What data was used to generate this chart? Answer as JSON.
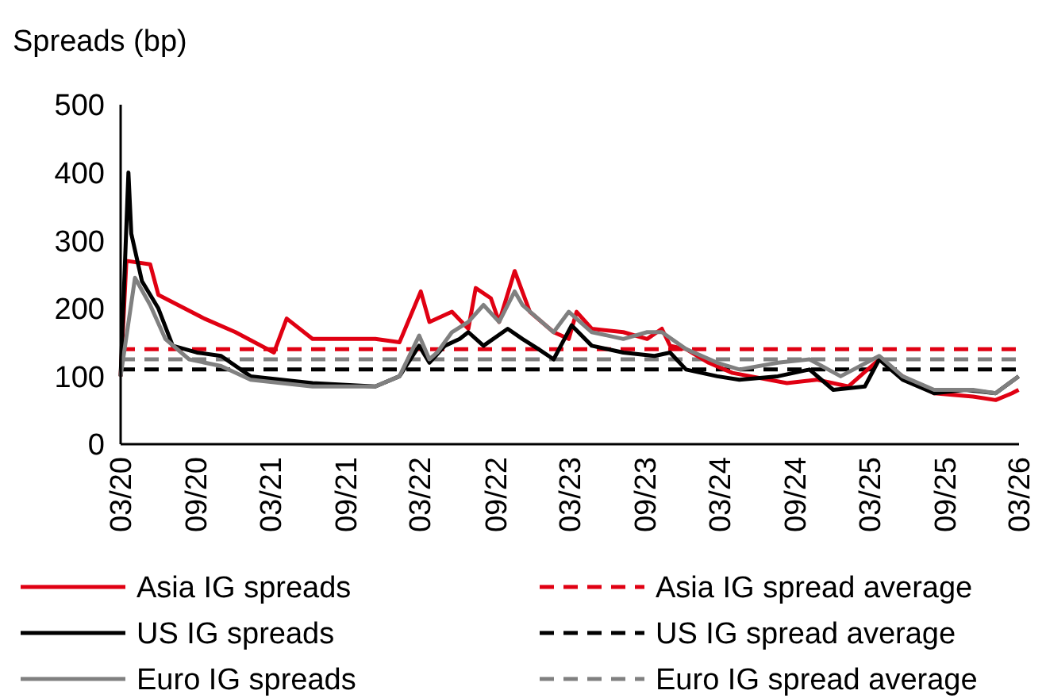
{
  "chart_data": {
    "type": "line",
    "ylabel": "Spreads (bp)",
    "ylim": [
      0,
      500
    ],
    "yticks": [
      0,
      100,
      200,
      300,
      400,
      500
    ],
    "xlim": [
      "2020-03-01",
      "2026-03-01"
    ],
    "xticks": [
      {
        "value": "2020-03-01",
        "label": "03/20"
      },
      {
        "value": "2020-09-01",
        "label": "09/20"
      },
      {
        "value": "2021-03-01",
        "label": "03/21"
      },
      {
        "value": "2021-09-01",
        "label": "09/21"
      },
      {
        "value": "2022-03-01",
        "label": "03/22"
      },
      {
        "value": "2022-09-01",
        "label": "09/22"
      },
      {
        "value": "2023-03-01",
        "label": "03/23"
      },
      {
        "value": "2023-09-01",
        "label": "09/23"
      },
      {
        "value": "2024-03-01",
        "label": "03/24"
      },
      {
        "value": "2024-09-01",
        "label": "09/24"
      },
      {
        "value": "2025-03-01",
        "label": "03/25"
      },
      {
        "value": "2025-09-01",
        "label": "09/25"
      },
      {
        "value": "2026-03-01",
        "label": "03/26"
      }
    ],
    "grid": false,
    "legend": "bottom",
    "line_style": "solid",
    "series": [
      {
        "name": "Asia IG spreads",
        "color": "#e00012",
        "x": [
          "2020-03-01",
          "2020-03-15",
          "2020-05-12",
          "2020-06-01",
          "2020-09-21",
          "2020-12-06",
          "2021-03-10",
          "2021-04-10",
          "2021-06-12",
          "2021-11-12",
          "2022-01-10",
          "2022-03-03",
          "2022-03-24",
          "2022-05-18",
          "2022-06-27",
          "2022-07-15",
          "2022-08-21",
          "2022-09-10",
          "2022-10-18",
          "2022-11-24",
          "2023-01-21",
          "2023-02-27",
          "2023-03-18",
          "2023-04-24",
          "2023-07-10",
          "2023-09-06",
          "2023-10-12",
          "2023-11-01",
          "2023-12-10",
          "2024-02-03",
          "2024-04-01",
          "2024-08-12",
          "2024-10-24",
          "2025-01-09",
          "2025-03-25",
          "2025-05-21",
          "2025-08-06",
          "2025-11-09",
          "2026-01-03",
          "2026-02-12",
          "2026-02-28"
        ],
        "values": [
          100,
          270,
          265,
          220,
          185,
          165,
          135,
          185,
          155,
          155,
          150,
          225,
          180,
          195,
          170,
          230,
          215,
          180,
          255,
          195,
          165,
          155,
          195,
          170,
          165,
          155,
          170,
          145,
          140,
          120,
          105,
          90,
          95,
          85,
          125,
          100,
          75,
          70,
          65,
          75,
          80
        ]
      },
      {
        "name": "US IG spreads",
        "color": "#000000",
        "x": [
          "2020-03-01",
          "2020-03-20",
          "2020-03-27",
          "2020-04-22",
          "2020-06-01",
          "2020-07-06",
          "2020-09-03",
          "2020-11-01",
          "2021-01-12",
          "2021-06-12",
          "2021-11-12",
          "2022-01-10",
          "2022-02-27",
          "2022-03-24",
          "2022-05-01",
          "2022-06-06",
          "2022-06-27",
          "2022-08-03",
          "2022-10-01",
          "2022-11-06",
          "2022-12-15",
          "2023-01-21",
          "2023-03-06",
          "2023-04-24",
          "2023-07-10",
          "2023-09-24",
          "2023-11-01",
          "2023-12-10",
          "2024-02-24",
          "2024-04-18",
          "2024-07-21",
          "2024-10-06",
          "2024-12-03",
          "2025-02-18",
          "2025-03-25",
          "2025-05-21",
          "2025-08-06",
          "2025-10-21",
          "2026-01-03",
          "2026-02-28"
        ],
        "values": [
          100,
          400,
          310,
          240,
          200,
          145,
          135,
          130,
          100,
          90,
          85,
          100,
          145,
          120,
          145,
          155,
          165,
          145,
          170,
          155,
          140,
          125,
          175,
          145,
          135,
          130,
          135,
          110,
          100,
          95,
          100,
          110,
          80,
          85,
          125,
          95,
          75,
          80,
          75,
          100
        ]
      },
      {
        "name": "Euro IG spreads",
        "color": "#808080",
        "x": [
          "2020-03-01",
          "2020-04-05",
          "2020-05-12",
          "2020-06-18",
          "2020-08-15",
          "2020-11-01",
          "2021-01-12",
          "2021-06-12",
          "2021-11-12",
          "2022-01-10",
          "2022-02-27",
          "2022-03-24",
          "2022-04-12",
          "2022-05-18",
          "2022-06-27",
          "2022-08-03",
          "2022-09-10",
          "2022-10-18",
          "2022-11-06",
          "2023-01-21",
          "2023-02-27",
          "2023-04-24",
          "2023-07-10",
          "2023-09-06",
          "2023-10-12",
          "2023-12-10",
          "2024-02-24",
          "2024-04-18",
          "2024-07-21",
          "2024-10-06",
          "2024-12-21",
          "2025-03-25",
          "2025-05-21",
          "2025-08-06",
          "2025-11-09",
          "2026-01-03",
          "2026-02-28"
        ],
        "values": [
          100,
          245,
          205,
          155,
          125,
          115,
          95,
          85,
          85,
          100,
          160,
          125,
          135,
          165,
          180,
          205,
          180,
          225,
          205,
          165,
          195,
          165,
          155,
          165,
          165,
          140,
          120,
          110,
          120,
          125,
          100,
          130,
          100,
          80,
          80,
          75,
          100
        ]
      }
    ],
    "ref_lines": [
      {
        "axis": "y",
        "value": 140,
        "label": "Asia IG spread average",
        "color": "#e00012",
        "line_style": "dashed"
      },
      {
        "axis": "y",
        "value": 110,
        "label": "US IG spread average",
        "color": "#000000",
        "line_style": "dashed"
      },
      {
        "axis": "y",
        "value": 125,
        "label": "Euro IG spread average",
        "color": "#808080",
        "line_style": "dashed"
      }
    ]
  }
}
